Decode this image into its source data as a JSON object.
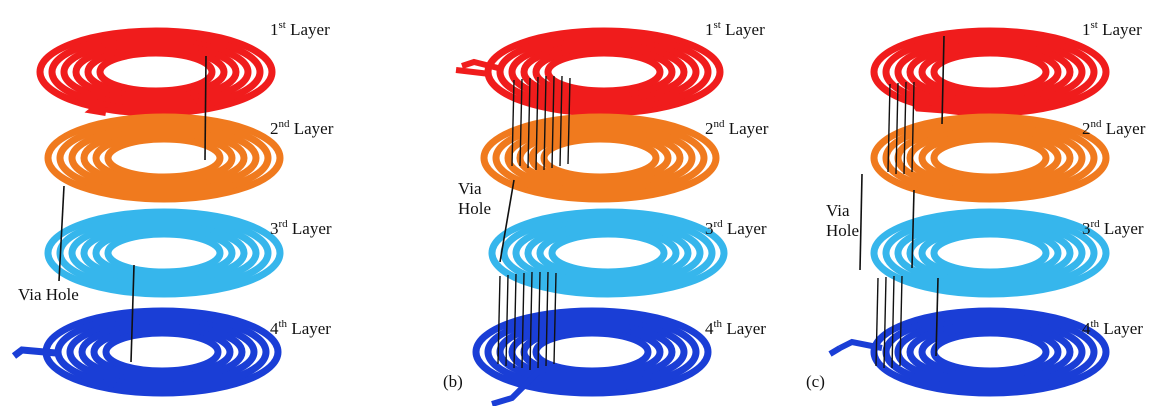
{
  "colors": {
    "layer1": "#f01c1c",
    "layer2": "#f07a1e",
    "layer3": "#36b6ec",
    "layer4": "#1a3ed6",
    "via": "#111111",
    "background": "#ffffff"
  },
  "layer_labels": [
    {
      "ordinal": "1",
      "suffix": "st",
      "word": "Layer"
    },
    {
      "ordinal": "2",
      "suffix": "nd",
      "word": "Layer"
    },
    {
      "ordinal": "3",
      "suffix": "rd",
      "word": "Layer"
    },
    {
      "ordinal": "4",
      "suffix": "th",
      "word": "Layer"
    }
  ],
  "panels": [
    {
      "id": "a",
      "tag": "",
      "via_line1": "Via Hole",
      "via_line2": ""
    },
    {
      "id": "b",
      "tag": "(b)",
      "via_line1": "Via",
      "via_line2": "Hole"
    },
    {
      "id": "c",
      "tag": "(c)",
      "via_line1": "Via",
      "via_line2": "Hole"
    }
  ]
}
